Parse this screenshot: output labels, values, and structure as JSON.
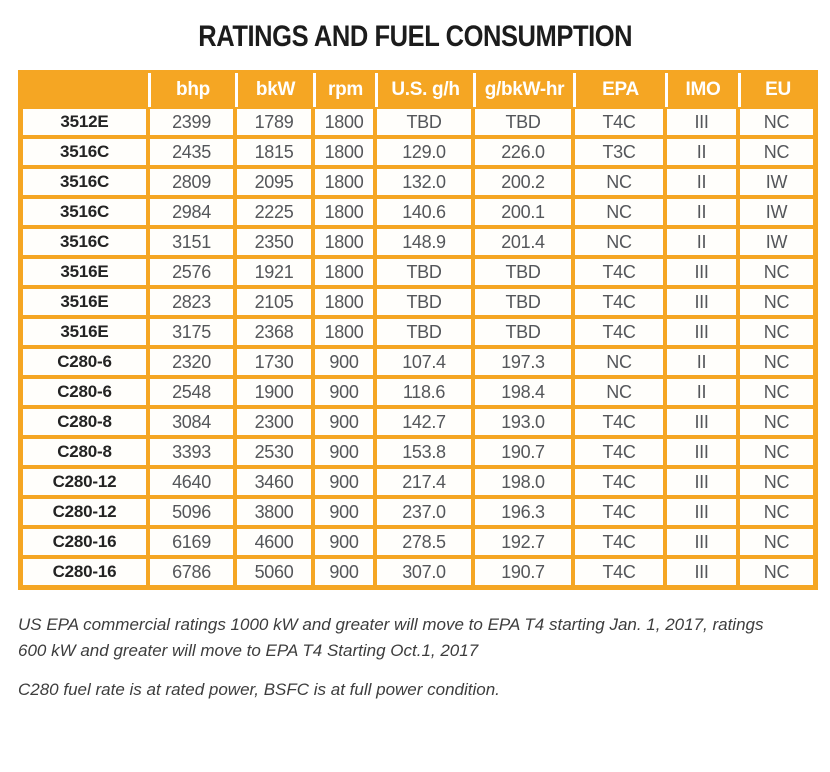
{
  "title": "RATINGS AND FUEL CONSUMPTION",
  "colors": {
    "accent": "#F5A623",
    "header_text": "#FFFFFF",
    "cell_text": "#54565A",
    "model_text": "#232323"
  },
  "table": {
    "columns": [
      "",
      "bhp",
      "bkW",
      "rpm",
      "U.S. g/h",
      "g/bkW-hr",
      "EPA",
      "IMO",
      "EU"
    ],
    "rows": [
      [
        "3512E",
        "2399",
        "1789",
        "1800",
        "TBD",
        "TBD",
        "T4C",
        "III",
        "NC"
      ],
      [
        "3516C",
        "2435",
        "1815",
        "1800",
        "129.0",
        "226.0",
        "T3C",
        "II",
        "NC"
      ],
      [
        "3516C",
        "2809",
        "2095",
        "1800",
        "132.0",
        "200.2",
        "NC",
        "II",
        "IW"
      ],
      [
        "3516C",
        "2984",
        "2225",
        "1800",
        "140.6",
        "200.1",
        "NC",
        "II",
        "IW"
      ],
      [
        "3516C",
        "3151",
        "2350",
        "1800",
        "148.9",
        "201.4",
        "NC",
        "II",
        "IW"
      ],
      [
        "3516E",
        "2576",
        "1921",
        "1800",
        "TBD",
        "TBD",
        "T4C",
        "III",
        "NC"
      ],
      [
        "3516E",
        "2823",
        "2105",
        "1800",
        "TBD",
        "TBD",
        "T4C",
        "III",
        "NC"
      ],
      [
        "3516E",
        "3175",
        "2368",
        "1800",
        "TBD",
        "TBD",
        "T4C",
        "III",
        "NC"
      ],
      [
        "C280-6",
        "2320",
        "1730",
        "900",
        "107.4",
        "197.3",
        "NC",
        "II",
        "NC"
      ],
      [
        "C280-6",
        "2548",
        "1900",
        "900",
        "118.6",
        "198.4",
        "NC",
        "II",
        "NC"
      ],
      [
        "C280-8",
        "3084",
        "2300",
        "900",
        "142.7",
        "193.0",
        "T4C",
        "III",
        "NC"
      ],
      [
        "C280-8",
        "3393",
        "2530",
        "900",
        "153.8",
        "190.7",
        "T4C",
        "III",
        "NC"
      ],
      [
        "C280-12",
        "4640",
        "3460",
        "900",
        "217.4",
        "198.0",
        "T4C",
        "III",
        "NC"
      ],
      [
        "C280-12",
        "5096",
        "3800",
        "900",
        "237.0",
        "196.3",
        "T4C",
        "III",
        "NC"
      ],
      [
        "C280-16",
        "6169",
        "4600",
        "900",
        "278.5",
        "192.7",
        "T4C",
        "III",
        "NC"
      ],
      [
        "C280-16",
        "6786",
        "5060",
        "900",
        "307.0",
        "190.7",
        "T4C",
        "III",
        "NC"
      ]
    ]
  },
  "footnotes": [
    [
      "US EPA commercial ratings 1000 kW and greater will move to EPA T4 starting Jan. 1, 2017, ratings",
      "600 kW and greater will move to EPA T4 Starting Oct.1, 2017"
    ],
    [
      "C280 fuel rate is at rated power, BSFC is at full power condition."
    ]
  ]
}
